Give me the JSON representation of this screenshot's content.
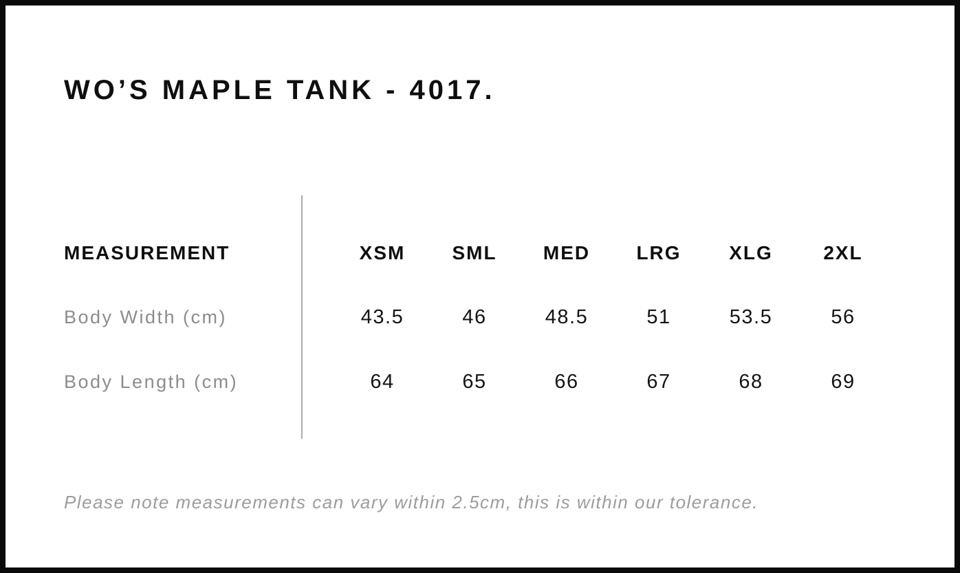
{
  "page": {
    "title": "WO’S MAPLE TANK - 4017."
  },
  "table": {
    "measurement_header": "MEASUREMENT",
    "size_headers": [
      "XSM",
      "SML",
      "MED",
      "LRG",
      "XLG",
      "2XL"
    ],
    "rows": [
      {
        "label": "Body Width (cm)",
        "values": [
          "43.5",
          "46",
          "48.5",
          "51",
          "53.5",
          "56"
        ]
      },
      {
        "label": "Body Length (cm)",
        "values": [
          "64",
          "65",
          "66",
          "67",
          "68",
          "69"
        ]
      }
    ]
  },
  "note": "Please note measurements can vary within 2.5cm, this is within our tolerance.",
  "colors": {
    "background": "#ffffff",
    "border": "#0a0a0a",
    "text_primary": "#0f0f0f",
    "text_secondary": "#8c8c8c",
    "note_text": "#9c9c9c",
    "divider": "#ababab"
  }
}
